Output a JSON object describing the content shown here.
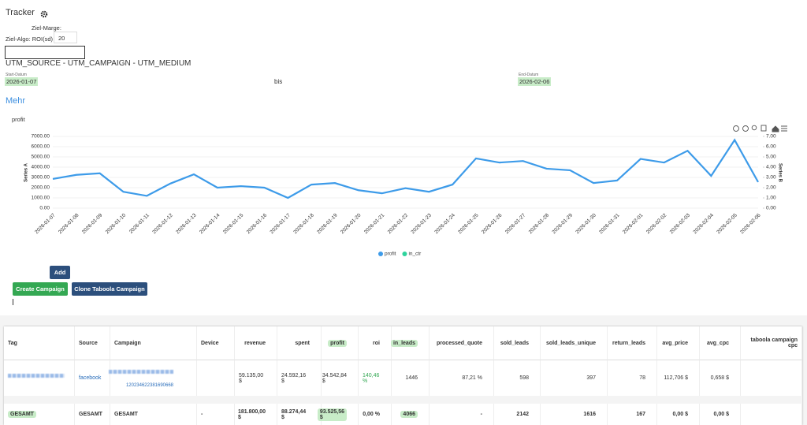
{
  "header": {
    "title": "Tracker",
    "ziel_marge": "Ziel-Marge:",
    "ziel_algo": "Ziel-Algo: ROI(sd)",
    "ziel_algo_value": "20",
    "utm": "UTM_SOURCE - UTM_CAMPAIGN - UTM_MEDIUM",
    "start_label": "Start-Datum",
    "start": "2026-01-07",
    "bis": "bis",
    "end_label": "End-Datum",
    "end": "2026-02-06",
    "more": "Mehr"
  },
  "chart_data": {
    "type": "line",
    "title": "profit",
    "y_label": "Series A",
    "y2_label": "Series B",
    "categories": [
      "2026-01-07",
      "2026-01-08",
      "2026-01-09",
      "2026-01-10",
      "2026-01-11",
      "2026-01-12",
      "2026-01-13",
      "2026-01-14",
      "2026-01-15",
      "2026-01-16",
      "2026-01-17",
      "2026-01-18",
      "2026-01-19",
      "2026-01-20",
      "2026-01-21",
      "2026-01-22",
      "2026-01-23",
      "2026-01-24",
      "2026-01-25",
      "2026-01-26",
      "2026-01-27",
      "2026-01-28",
      "2026-01-29",
      "2026-01-30",
      "2026-01-31",
      "2026-02-01",
      "2026-02-02",
      "2026-02-03",
      "2026-02-04",
      "2026-02-05",
      "2026-02-06"
    ],
    "series": [
      {
        "name": "profit",
        "color": "#3d9be9",
        "values": [
          2850,
          3250,
          3400,
          1600,
          1200,
          2400,
          3300,
          2000,
          2150,
          2000,
          1000,
          2300,
          2450,
          1750,
          1450,
          1950,
          1600,
          2300,
          4850,
          4450,
          4600,
          3850,
          3700,
          2450,
          2700,
          4800,
          4450,
          5600,
          3150,
          6650,
          2550
        ]
      },
      {
        "name": "in_ctr",
        "color": "#2ed39c",
        "axis": "y2",
        "values": [
          null,
          null,
          null,
          null,
          null,
          null,
          null,
          null,
          null,
          null,
          null,
          null,
          null,
          null,
          null,
          null,
          null,
          null,
          null,
          null,
          null,
          null,
          null,
          null,
          null,
          null,
          null,
          null,
          null,
          null,
          null
        ]
      }
    ],
    "ylim": [
      0,
      7000
    ],
    "yticks": [
      {
        "value": 0,
        "label": "0.00"
      },
      {
        "value": 1000,
        "label": "1000.00"
      },
      {
        "value": 2000,
        "label": "2000.00"
      },
      {
        "value": 3000,
        "label": "3000.00"
      },
      {
        "value": 4000,
        "label": "4000.00"
      },
      {
        "value": 5000,
        "label": "5000.00"
      },
      {
        "value": 6000,
        "label": "6000.00"
      },
      {
        "value": 7000,
        "label": "7000.00"
      }
    ],
    "y2lim": [
      0,
      7
    ],
    "y2ticks": [
      {
        "value": 0,
        "label": "0.00"
      },
      {
        "value": 1,
        "label": "1.00"
      },
      {
        "value": 2,
        "label": "2.00"
      },
      {
        "value": 3,
        "label": "3.00"
      },
      {
        "value": 4,
        "label": "4.00"
      },
      {
        "value": 5,
        "label": "5.00"
      },
      {
        "value": 6,
        "label": "6.00"
      },
      {
        "value": 7,
        "label": "7.00"
      }
    ],
    "legend": "bottom"
  },
  "buttons": {
    "add": "Add",
    "create": "Create Campaign",
    "clone": "Clone Taboola Campaign"
  },
  "table": {
    "columns": [
      "Tag",
      "Source",
      "Campaign",
      "Device",
      "revenue",
      "spent",
      "profit",
      "roi",
      "in_leads",
      "processed_quote",
      "sold_leads",
      "sold_leads_unique",
      "return_leads",
      "avg_price",
      "avg_cpc",
      "taboola campaign cpc"
    ],
    "rows": [
      {
        "Source": "facebook",
        "Campaign": "120234622381690668",
        "revenue": "59.135,00 $",
        "spent": "24.592,16 $",
        "profit": "34.542,84 $",
        "roi": "140,46 %",
        "in_leads": "1446",
        "processed_quote": "87,21 %",
        "sold_leads": "598",
        "sold_leads_unique": "397",
        "return_leads": "78",
        "avg_price": "112,706 $",
        "avg_cpc": "0,658 $"
      }
    ],
    "total": {
      "Tag": "GESAMT",
      "Source": "GESAMT",
      "Campaign": "GESAMT",
      "Device": "-",
      "revenue": "181.800,00 $",
      "spent": "88.274,44 $",
      "profit": "93.525,56 $",
      "roi": "0,00 %",
      "in_leads": "4066",
      "processed_quote": "-",
      "sold_leads": "2142",
      "sold_leads_unique": "1616",
      "return_leads": "167",
      "avg_price": "0,00 $",
      "avg_cpc": "0,00 $"
    }
  }
}
